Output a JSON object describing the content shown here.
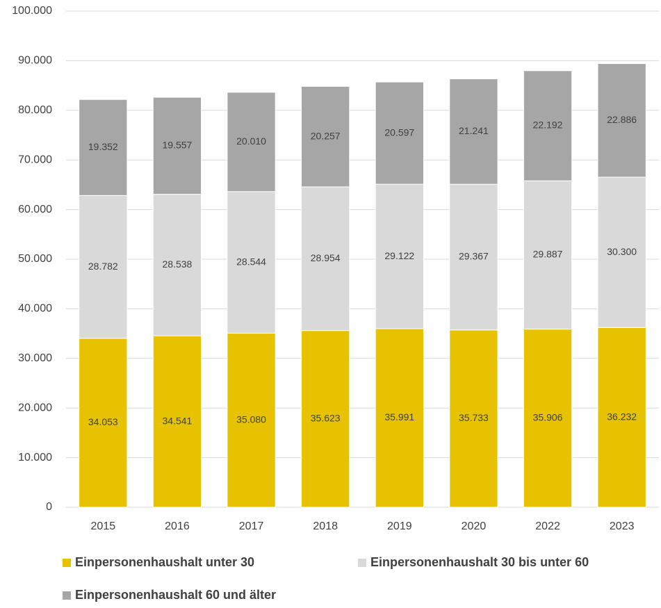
{
  "chart_data": {
    "type": "stacked_bar",
    "categories": [
      "2015",
      "2016",
      "2017",
      "2018",
      "2019",
      "2020",
      "2022",
      "2023"
    ],
    "series": [
      {
        "name": "Einpersonenhaushalt unter 30",
        "color": "#e6c200",
        "values": [
          34053,
          34541,
          35080,
          35623,
          35991,
          35733,
          35906,
          36232
        ],
        "value_labels": [
          "34.053",
          "34.541",
          "35.080",
          "35.623",
          "35.991",
          "35.733",
          "35.906",
          "36.232"
        ]
      },
      {
        "name": "Einpersonenhaushalt 30 bis unter 60",
        "color": "#d9d9d9",
        "values": [
          28782,
          28538,
          28544,
          28954,
          29122,
          29367,
          29887,
          30300
        ],
        "value_labels": [
          "28.782",
          "28.538",
          "28.544",
          "28.954",
          "29.122",
          "29.367",
          "29.887",
          "30.300"
        ]
      },
      {
        "name": "Einpersonenhaushalt 60 und älter",
        "color": "#a6a6a6",
        "values": [
          19352,
          19557,
          20010,
          20257,
          20597,
          21241,
          22192,
          22886
        ],
        "value_labels": [
          "19.352",
          "19.557",
          "20.010",
          "20.257",
          "20.597",
          "21.241",
          "22.192",
          "22.886"
        ]
      }
    ],
    "ylim": [
      0,
      100000
    ],
    "yticks": [
      0,
      {
        "value": 10000,
        "label": "10.000"
      },
      {
        "value": 20000,
        "label": "20.000"
      },
      {
        "value": 30000,
        "label": "30.000"
      },
      {
        "value": 40000,
        "label": "40.000"
      },
      {
        "value": 50000,
        "label": "50.000"
      },
      {
        "value": 60000,
        "label": "60.000"
      },
      {
        "value": 70000,
        "label": "70.000"
      },
      {
        "value": 80000,
        "label": "80.000"
      },
      {
        "value": 90000,
        "label": "90.000"
      },
      {
        "value": 100000,
        "label": "100.000"
      }
    ],
    "grid": true
  }
}
